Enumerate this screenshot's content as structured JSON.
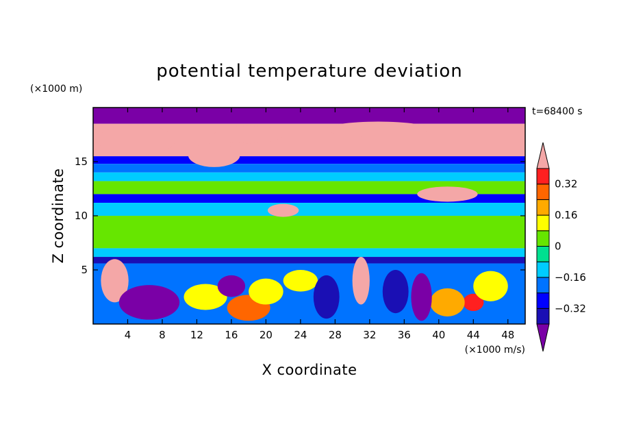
{
  "chart_data": {
    "type": "heatmap",
    "title": "potential temperature deviation",
    "xlabel": "X coordinate",
    "ylabel": "Z coordinate",
    "x_unit_label": "(×1000 m/s)",
    "y_unit_label": "(×1000 m)",
    "time_label": "t=68400 s",
    "xlim": [
      0,
      50
    ],
    "ylim": [
      0,
      20
    ],
    "x_ticks": [
      4,
      8,
      12,
      16,
      20,
      24,
      28,
      32,
      36,
      40,
      44,
      48
    ],
    "y_ticks": [
      5,
      10,
      15
    ],
    "x_tick_labels": [
      "4",
      "8",
      "12",
      "16",
      "20",
      "24",
      "28",
      "32",
      "36",
      "40",
      "44",
      "48"
    ],
    "y_tick_labels": [
      "5",
      "10",
      "15"
    ],
    "colorbar": {
      "levels": [
        -0.4,
        -0.32,
        -0.24,
        -0.16,
        -0.08,
        0,
        0.08,
        0.16,
        0.24,
        0.32,
        0.4
      ],
      "tick_labels": [
        "0.32",
        "0.16",
        "0",
        "−0.16",
        "−0.32"
      ],
      "tick_values": [
        0.32,
        0.16,
        0,
        -0.16,
        -0.32
      ],
      "colors": [
        "#7a00a6",
        "#1a0fb4",
        "#0000ff",
        "#0073ff",
        "#00ccff",
        "#00e090",
        "#66e600",
        "#ffff00",
        "#ffaa00",
        "#ff6600",
        "#ff2020",
        "#f4a7a7"
      ],
      "extend": "both"
    },
    "field_bands": [
      {
        "z": [
          18.5,
          20.0
        ],
        "value": -0.45
      },
      {
        "z": [
          15.5,
          18.5
        ],
        "value": 0.45
      },
      {
        "z": [
          14.8,
          15.5
        ],
        "value": -0.3
      },
      {
        "z": [
          14.0,
          14.8
        ],
        "value": -0.2
      },
      {
        "z": [
          13.2,
          14.0
        ],
        "value": -0.1
      },
      {
        "z": [
          12.0,
          13.2
        ],
        "value": 0.02
      },
      {
        "z": [
          11.2,
          12.0
        ],
        "value": -0.3
      },
      {
        "z": [
          10.0,
          11.2
        ],
        "value": -0.1
      },
      {
        "z": [
          7.0,
          10.0
        ],
        "value": 0.05
      },
      {
        "z": [
          6.2,
          7.0
        ],
        "value": -0.1
      },
      {
        "z": [
          5.6,
          6.2
        ],
        "value": -0.4
      },
      {
        "z": [
          0.0,
          5.6
        ],
        "value": -0.2
      }
    ],
    "field_patches": [
      {
        "x": 5,
        "z": 17.0,
        "rx": 4.5,
        "rz": 1.4,
        "value": 0.45
      },
      {
        "x": 14,
        "z": 15.6,
        "rx": 3.0,
        "rz": 1.1,
        "value": 0.45
      },
      {
        "x": 18,
        "z": 17.5,
        "rx": 4.0,
        "rz": 0.8,
        "value": 0.45
      },
      {
        "x": 33,
        "z": 18.0,
        "rx": 6.0,
        "rz": 0.7,
        "value": 0.45
      },
      {
        "x": 41,
        "z": 12.0,
        "rx": 3.5,
        "rz": 0.7,
        "value": 0.45
      },
      {
        "x": 22,
        "z": 10.5,
        "rx": 1.8,
        "rz": 0.6,
        "value": 0.45
      },
      {
        "x": 2.5,
        "z": 4.0,
        "rx": 1.6,
        "rz": 2.0,
        "value": 0.45
      },
      {
        "x": 31,
        "z": 4.0,
        "rx": 1.0,
        "rz": 2.2,
        "value": 0.45
      },
      {
        "x": 44,
        "z": 2.0,
        "rx": 1.2,
        "rz": 0.8,
        "value": 0.35
      },
      {
        "x": 18,
        "z": 1.5,
        "rx": 2.5,
        "rz": 1.2,
        "value": 0.3
      },
      {
        "x": 20,
        "z": 3.0,
        "rx": 2.0,
        "rz": 1.2,
        "value": 0.1
      },
      {
        "x": 13,
        "z": 2.5,
        "rx": 2.5,
        "rz": 1.2,
        "value": 0.12
      },
      {
        "x": 24,
        "z": 4.0,
        "rx": 2.0,
        "rz": 1.0,
        "value": 0.08
      },
      {
        "x": 41,
        "z": 2.0,
        "rx": 2.0,
        "rz": 1.3,
        "value": 0.2
      },
      {
        "x": 46,
        "z": 3.5,
        "rx": 2.0,
        "rz": 1.4,
        "value": 0.1
      },
      {
        "x": 35,
        "z": 3.0,
        "rx": 1.5,
        "rz": 2.0,
        "value": -0.38
      },
      {
        "x": 38,
        "z": 2.5,
        "rx": 1.2,
        "rz": 2.2,
        "value": -0.45
      },
      {
        "x": 27,
        "z": 2.5,
        "rx": 1.5,
        "rz": 2.0,
        "value": -0.38
      },
      {
        "x": 6.5,
        "z": 2.0,
        "rx": 3.5,
        "rz": 1.6,
        "value": -0.45
      },
      {
        "x": 16,
        "z": 3.5,
        "rx": 1.6,
        "rz": 1.0,
        "value": -0.45
      }
    ]
  }
}
